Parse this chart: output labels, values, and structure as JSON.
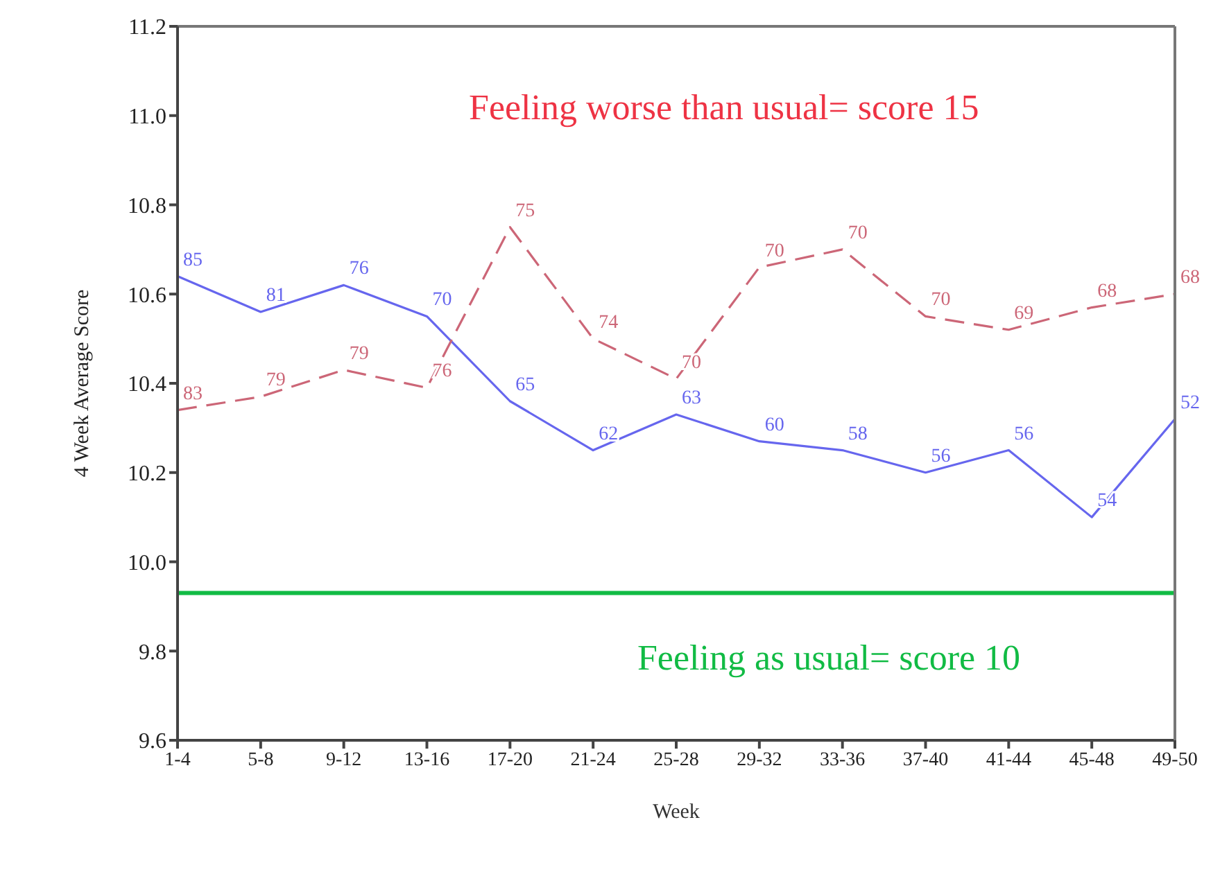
{
  "chart_data": {
    "type": "line",
    "xlabel": "Week",
    "ylabel": "4 Week Average Score",
    "categories": [
      "1-4",
      "5-8",
      "9-12",
      "13-16",
      "17-20",
      "21-24",
      "25-28",
      "29-32",
      "33-36",
      "37-40",
      "41-44",
      "45-48",
      "49-50"
    ],
    "series": [
      {
        "color": "#6666ee",
        "line_style": "solid",
        "values": [
          10.64,
          10.56,
          10.62,
          10.55,
          10.36,
          10.25,
          10.33,
          10.27,
          10.25,
          10.2,
          10.25,
          10.1,
          10.32
        ]
      },
      {
        "color": "#cc6677",
        "line_style": "dashed",
        "values": [
          10.34,
          10.37,
          10.43,
          10.39,
          10.75,
          10.5,
          10.41,
          10.66,
          10.7,
          10.55,
          10.52,
          10.57,
          10.6
        ]
      }
    ],
    "ylim": [
      9.6,
      11.2
    ],
    "yticks": [
      9.6,
      9.8,
      {
        "value": 10,
        "label": "10.0"
      },
      10.2,
      10.4,
      10.6,
      10.8,
      {
        "value": 11,
        "label": "11.0"
      },
      11.2
    ],
    "ref_lines": [
      {
        "axis": "y",
        "value": 9.93,
        "label": "Feeling as usual= score 10",
        "color": "#11bb44"
      }
    ],
    "annotations": [
      "Feeling worse than usual= score 15",
      {
        "text": "85",
        "x": "1-4",
        "y": 10.64
      },
      {
        "text": "81",
        "x": "5-8",
        "y": 10.56
      },
      {
        "text": "76",
        "x": "9-12",
        "y": 10.62
      },
      {
        "text": "70",
        "x": "13-16",
        "y": 10.55
      },
      {
        "text": "65",
        "x": "17-20",
        "y": 10.36
      },
      {
        "text": "62",
        "x": "21-24",
        "y": 10.25
      },
      {
        "text": "63",
        "x": "25-28",
        "y": 10.33
      },
      {
        "text": "60",
        "x": "29-32",
        "y": 10.27
      },
      {
        "text": "58",
        "x": "33-36",
        "y": 10.25
      },
      {
        "text": "56",
        "x": "37-40",
        "y": 10.2
      },
      {
        "text": "56",
        "x": "41-44",
        "y": 10.25
      },
      {
        "text": "54",
        "x": "45-48",
        "y": 10.1
      },
      {
        "text": "52",
        "x": "49-50",
        "y": 10.32
      },
      {
        "text": "83",
        "x": "1-4",
        "y": 10.34
      },
      {
        "text": "79",
        "x": "5-8",
        "y": 10.37
      },
      {
        "text": "79",
        "x": "9-12",
        "y": 10.43
      },
      {
        "text": "76",
        "x": "13-16",
        "y": 10.39
      },
      {
        "text": "75",
        "x": "17-20",
        "y": 10.75
      },
      {
        "text": "74",
        "x": "21-24",
        "y": 10.5
      },
      {
        "text": "70",
        "x": "25-28",
        "y": 10.41
      },
      {
        "text": "70",
        "x": "29-32",
        "y": 10.66
      },
      {
        "text": "70",
        "x": "33-36",
        "y": 10.7
      },
      {
        "text": "70",
        "x": "37-40",
        "y": 10.55
      },
      {
        "text": "69",
        "x": "41-44",
        "y": 10.52
      },
      {
        "text": "68",
        "x": "45-48",
        "y": 10.57
      },
      {
        "text": "68",
        "x": "49-50",
        "y": 10.6
      }
    ],
    "grid": false,
    "legend": false,
    "marker": "none"
  }
}
